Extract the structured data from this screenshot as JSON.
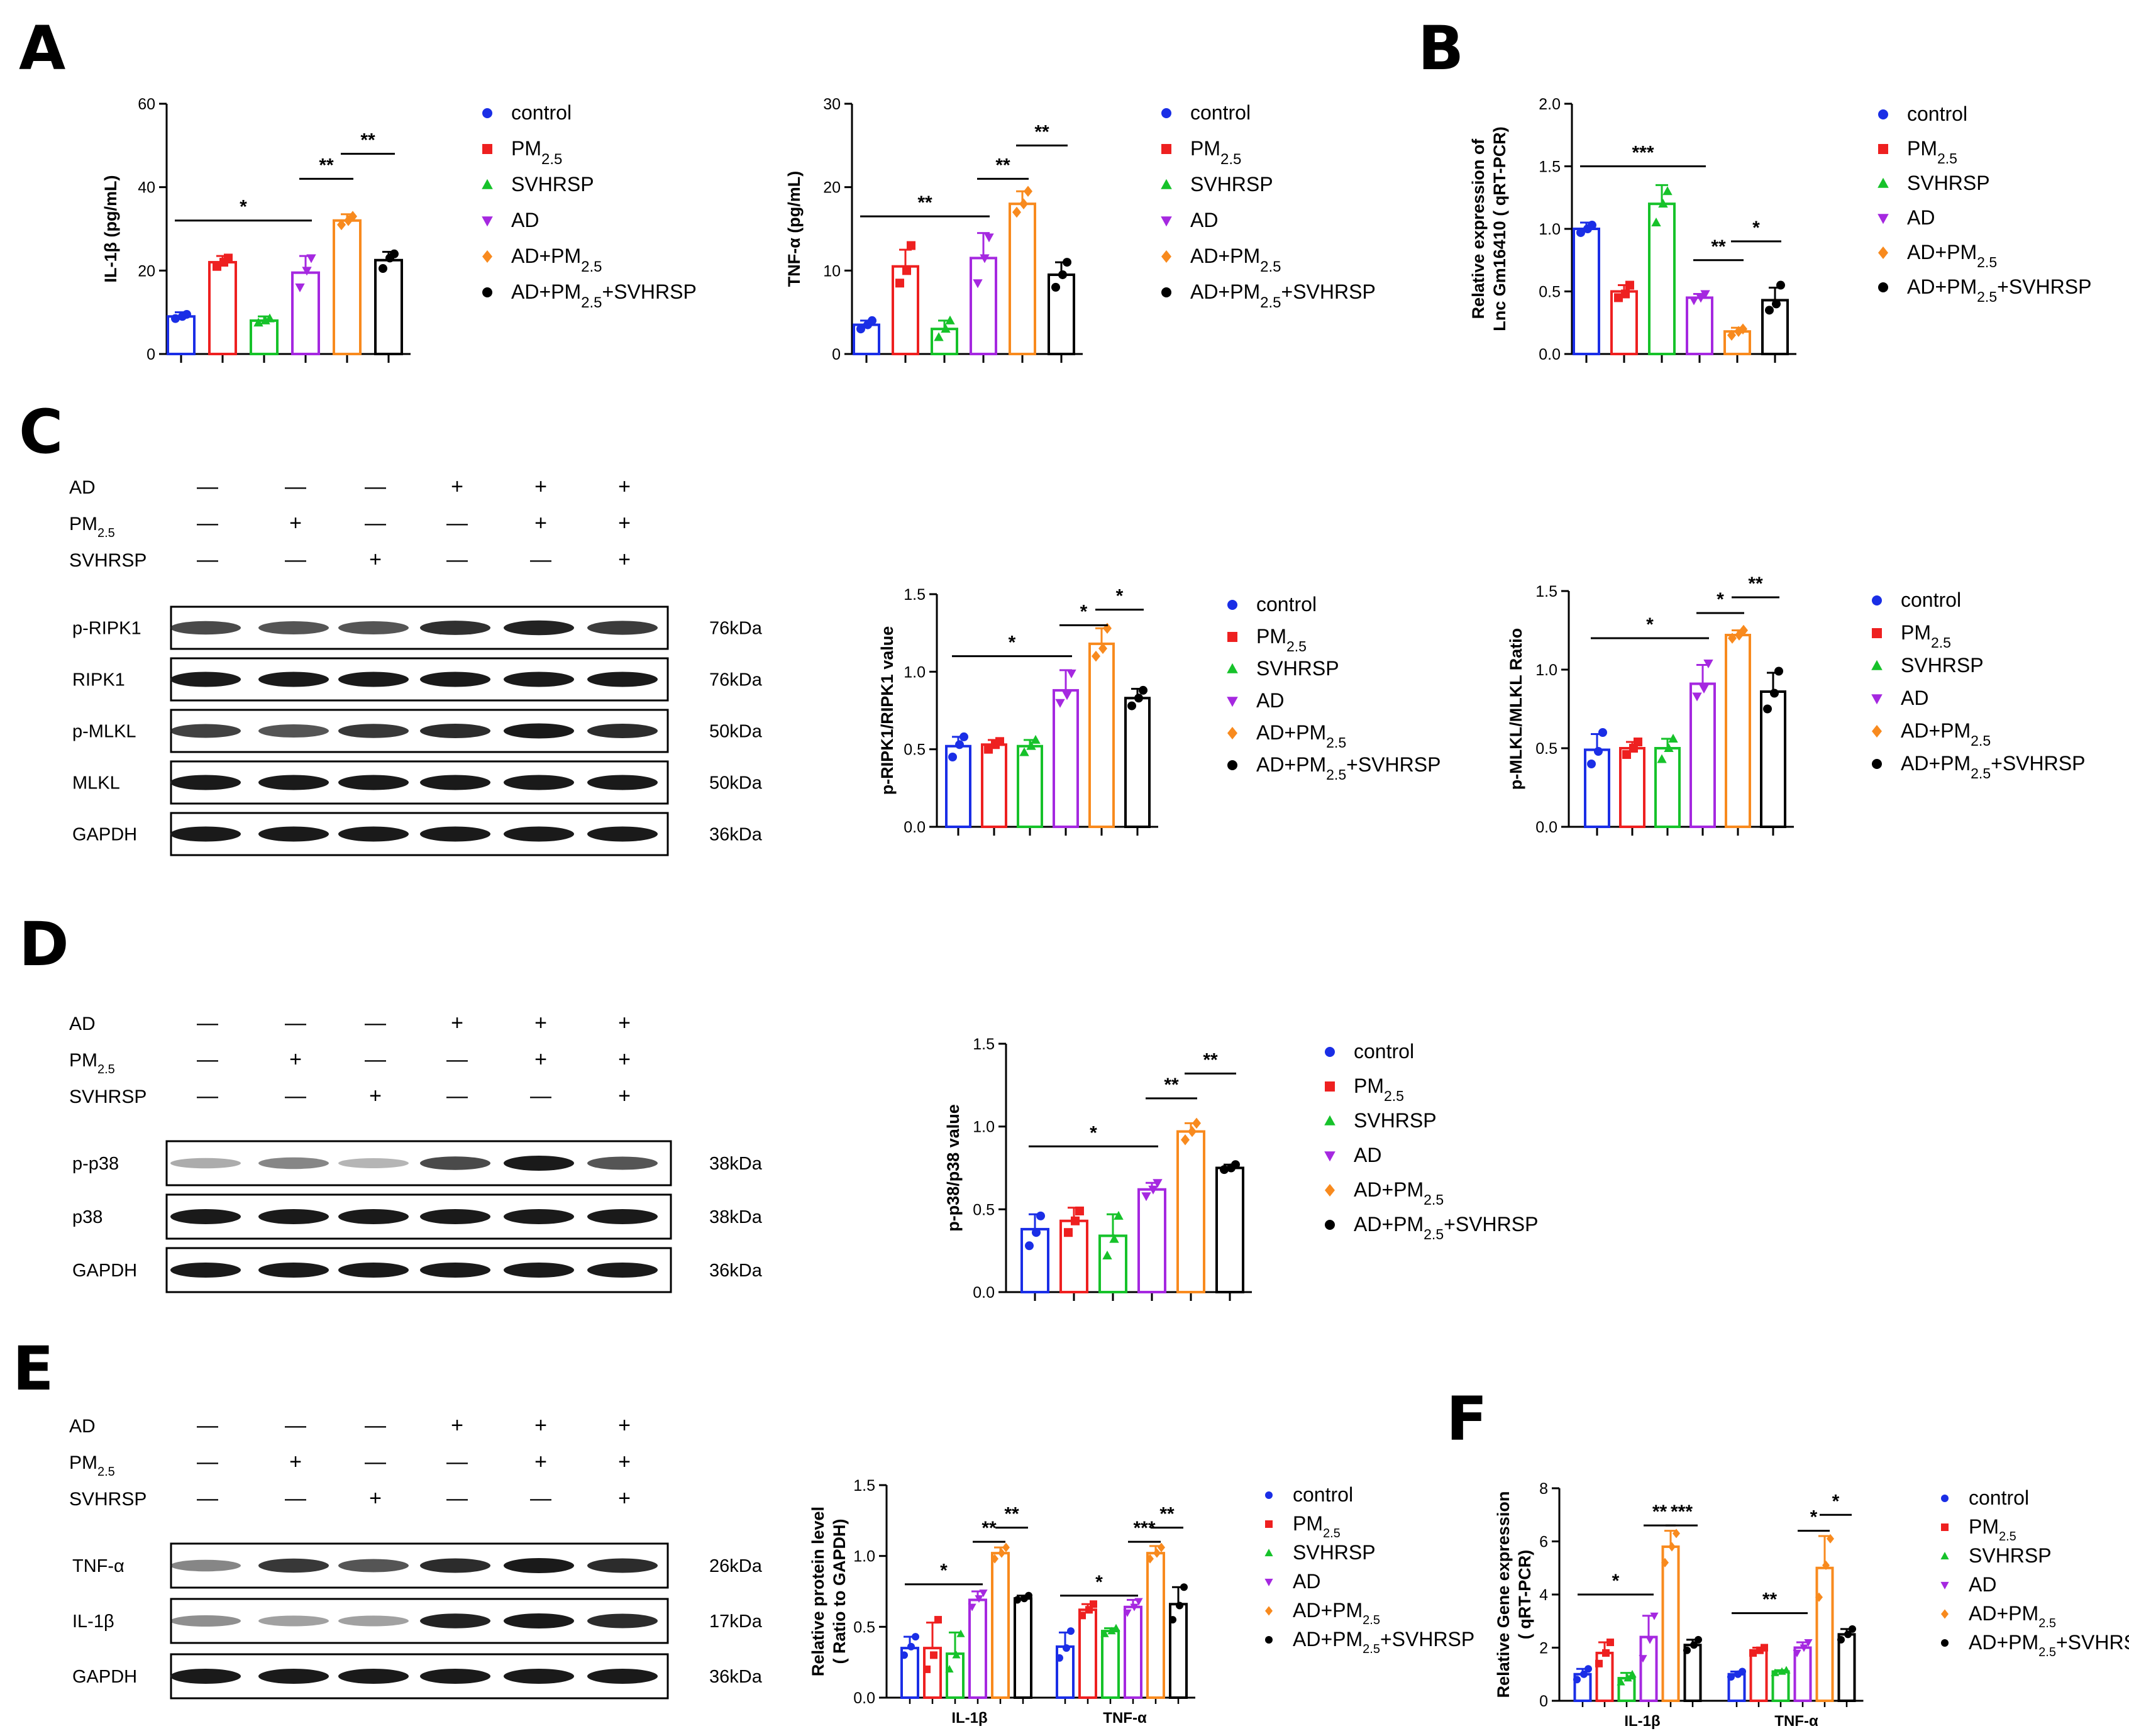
{
  "figure": {
    "panel_labels": [
      "A",
      "B",
      "C",
      "D",
      "E",
      "F"
    ],
    "colors": {
      "control": "#1a2ee6",
      "pm25": "#ee2020",
      "svhrsp": "#16c22a",
      "ad": "#a528e0",
      "ad_pm25": "#f88a1e",
      "ad_pm25_svhrsp": "#000000"
    },
    "legend_items": [
      {
        "base": "control",
        "sub": "",
        "tail": "",
        "marker": "circle",
        "color_key": "control"
      },
      {
        "base": "PM",
        "sub": "2.5",
        "tail": "",
        "marker": "square",
        "color_key": "pm25"
      },
      {
        "base": "SVHRSP",
        "sub": "",
        "tail": "",
        "marker": "triangle",
        "color_key": "svhrsp"
      },
      {
        "base": "AD",
        "sub": "",
        "tail": "",
        "marker": "triangle-down",
        "color_key": "ad"
      },
      {
        "base": "AD+PM",
        "sub": "2.5",
        "tail": "",
        "marker": "diamond",
        "color_key": "ad_pm25"
      },
      {
        "base": "AD+PM",
        "sub": "2.5",
        "tail": "+SVHRSP",
        "marker": "circle",
        "color_key": "ad_pm25_svhrsp"
      }
    ],
    "condition_rows": [
      {
        "label": "AD",
        "sub": "",
        "signs": [
          "—",
          "—",
          "—",
          "+",
          "+",
          "+"
        ]
      },
      {
        "label": "PM",
        "sub": "2.5",
        "signs": [
          "—",
          "+",
          "—",
          "—",
          "+",
          "+"
        ]
      },
      {
        "label": "SVHRSP",
        "sub": "",
        "signs": [
          "—",
          "—",
          "+",
          "—",
          "—",
          "+"
        ]
      }
    ],
    "blots": {
      "C": [
        {
          "label": "p-RIPK1",
          "kda": "76kDa"
        },
        {
          "label": "RIPK1",
          "kda": "76kDa"
        },
        {
          "label": "p-MLKL",
          "kda": "50kDa"
        },
        {
          "label": "MLKL",
          "kda": "50kDa"
        },
        {
          "label": "GAPDH",
          "kda": "36kDa"
        }
      ],
      "D": [
        {
          "label": "p-p38",
          "kda": "38kDa"
        },
        {
          "label": "p38",
          "kda": "38kDa"
        },
        {
          "label": "GAPDH",
          "kda": "36kDa"
        }
      ],
      "E": [
        {
          "label": "TNF-α",
          "kda": "26kDa"
        },
        {
          "label": "IL-1β",
          "kda": "17kDa"
        },
        {
          "label": "GAPDH",
          "kda": "36kDa"
        }
      ]
    }
  },
  "chart_data": [
    {
      "id": "A1",
      "panel": "A",
      "type": "bar",
      "ylabel": "IL-1β (pg/mL)",
      "ylim": [
        0,
        60
      ],
      "yticks": [
        "0",
        "20",
        "40",
        "60"
      ],
      "groups": [
        "control",
        "PM2.5",
        "SVHRSP",
        "AD",
        "AD+PM2.5",
        "AD+PM2.5+SVHRSP"
      ],
      "values": [
        9,
        22,
        8,
        19.5,
        32,
        22.5
      ],
      "errors": [
        1,
        1.5,
        1,
        4,
        1.5,
        2
      ],
      "points": [
        [
          8.5,
          9,
          9.5
        ],
        [
          21,
          22,
          23
        ],
        [
          7.5,
          8,
          8.5
        ],
        [
          16,
          20,
          23
        ],
        [
          31,
          32,
          33
        ],
        [
          20.5,
          23,
          24
        ]
      ],
      "significance": [
        {
          "from": 0,
          "to": 3,
          "label": "*",
          "y": 32
        },
        {
          "from": 3,
          "to": 4,
          "label": "**",
          "y": 42
        },
        {
          "from": 4,
          "to": 5,
          "label": "**",
          "y": 48
        }
      ]
    },
    {
      "id": "A2",
      "panel": "A",
      "type": "bar",
      "ylabel": "TNF-α (pg/mL)",
      "ylim": [
        0,
        30
      ],
      "yticks": [
        "0",
        "10",
        "20",
        "30"
      ],
      "groups": [
        "control",
        "PM2.5",
        "SVHRSP",
        "AD",
        "AD+PM2.5",
        "AD+PM2.5+SVHRSP"
      ],
      "values": [
        3.5,
        10.5,
        3,
        11.5,
        18,
        9.5
      ],
      "errors": [
        0.5,
        2,
        1,
        3,
        1.5,
        1.5
      ],
      "points": [
        [
          3,
          3.5,
          4
        ],
        [
          8.5,
          10,
          13
        ],
        [
          2,
          3,
          4
        ],
        [
          8.5,
          11.5,
          14
        ],
        [
          17,
          18,
          19.5
        ],
        [
          8,
          9.5,
          11
        ]
      ],
      "significance": [
        {
          "from": 0,
          "to": 3,
          "label": "**",
          "y": 16.5
        },
        {
          "from": 3,
          "to": 4,
          "label": "**",
          "y": 21
        },
        {
          "from": 4,
          "to": 5,
          "label": "**",
          "y": 25
        }
      ]
    },
    {
      "id": "B",
      "panel": "B",
      "type": "bar",
      "ylabel": [
        "Relative expression of",
        "Lnc Gm16410 ( qRT-PCR)"
      ],
      "ylim": [
        0,
        2.0
      ],
      "yticks": [
        "0.0",
        "0.5",
        "1.0",
        "1.5",
        "2.0"
      ],
      "groups": [
        "control",
        "PM2.5",
        "SVHRSP",
        "AD",
        "AD+PM2.5",
        "AD+PM2.5+SVHRSP"
      ],
      "values": [
        1.0,
        0.5,
        1.2,
        0.45,
        0.18,
        0.43
      ],
      "errors": [
        0.05,
        0.05,
        0.15,
        0.03,
        0.03,
        0.1
      ],
      "points": [
        [
          0.97,
          1.0,
          1.03
        ],
        [
          0.45,
          0.48,
          0.55
        ],
        [
          1.05,
          1.2,
          1.3
        ],
        [
          0.43,
          0.45,
          0.48
        ],
        [
          0.15,
          0.18,
          0.2
        ],
        [
          0.35,
          0.4,
          0.55
        ]
      ],
      "significance": [
        {
          "from": 0,
          "to": 3,
          "label": "***",
          "y": 1.5
        },
        {
          "from": 3,
          "to": 4,
          "label": "**",
          "y": 0.75
        },
        {
          "from": 4,
          "to": 5,
          "label": "*",
          "y": 0.9
        }
      ]
    },
    {
      "id": "C1",
      "panel": "C",
      "type": "bar",
      "ylabel": "p-RIPK1/RIPK1 value",
      "ylim": [
        0,
        1.5
      ],
      "yticks": [
        "0.0",
        "0.5",
        "1.0",
        "1.5"
      ],
      "groups": [
        "control",
        "PM2.5",
        "SVHRSP",
        "AD",
        "AD+PM2.5",
        "AD+PM2.5+SVHRSP"
      ],
      "values": [
        0.52,
        0.53,
        0.52,
        0.88,
        1.18,
        0.83
      ],
      "errors": [
        0.06,
        0.03,
        0.04,
        0.13,
        0.1,
        0.06
      ],
      "points": [
        [
          0.45,
          0.53,
          0.58
        ],
        [
          0.5,
          0.53,
          0.55
        ],
        [
          0.48,
          0.52,
          0.56
        ],
        [
          0.8,
          0.85,
          0.99
        ],
        [
          1.1,
          1.15,
          1.28
        ],
        [
          0.78,
          0.83,
          0.88
        ]
      ],
      "significance": [
        {
          "from": 0,
          "to": 3,
          "label": "*",
          "y": 1.1
        },
        {
          "from": 3,
          "to": 4,
          "label": "*",
          "y": 1.3
        },
        {
          "from": 4,
          "to": 5,
          "label": "*",
          "y": 1.4
        }
      ]
    },
    {
      "id": "C2",
      "panel": "C",
      "type": "bar",
      "ylabel": "p-MLKL/MLKL Ratio",
      "ylim": [
        0,
        1.5
      ],
      "yticks": [
        "0.0",
        "0.5",
        "1.0",
        "1.5"
      ],
      "groups": [
        "control",
        "PM2.5",
        "SVHRSP",
        "AD",
        "AD+PM2.5",
        "AD+PM2.5+SVHRSP"
      ],
      "values": [
        0.49,
        0.5,
        0.5,
        0.91,
        1.22,
        0.86
      ],
      "errors": [
        0.1,
        0.04,
        0.06,
        0.12,
        0.03,
        0.12
      ],
      "points": [
        [
          0.4,
          0.48,
          0.6
        ],
        [
          0.46,
          0.5,
          0.54
        ],
        [
          0.43,
          0.5,
          0.56
        ],
        [
          0.83,
          0.88,
          1.04
        ],
        [
          1.2,
          1.22,
          1.25
        ],
        [
          0.75,
          0.85,
          0.99
        ]
      ],
      "significance": [
        {
          "from": 0,
          "to": 3,
          "label": "*",
          "y": 1.2
        },
        {
          "from": 3,
          "to": 4,
          "label": "*",
          "y": 1.36
        },
        {
          "from": 4,
          "to": 5,
          "label": "**",
          "y": 1.46
        }
      ]
    },
    {
      "id": "D",
      "panel": "D",
      "type": "bar",
      "ylabel": "p-p38/p38 value",
      "ylim": [
        0,
        1.5
      ],
      "yticks": [
        "0.0",
        "0.5",
        "1.0",
        "1.5"
      ],
      "groups": [
        "control",
        "PM2.5",
        "SVHRSP",
        "AD",
        "AD+PM2.5",
        "AD+PM2.5+SVHRSP"
      ],
      "values": [
        0.38,
        0.43,
        0.34,
        0.62,
        0.97,
        0.75
      ],
      "errors": [
        0.09,
        0.08,
        0.13,
        0.04,
        0.05,
        0.02
      ],
      "points": [
        [
          0.28,
          0.36,
          0.46
        ],
        [
          0.36,
          0.43,
          0.49
        ],
        [
          0.22,
          0.32,
          0.46
        ],
        [
          0.58,
          0.62,
          0.66
        ],
        [
          0.92,
          0.97,
          1.02
        ],
        [
          0.74,
          0.75,
          0.77
        ]
      ],
      "significance": [
        {
          "from": 0,
          "to": 3,
          "label": "*",
          "y": 0.88
        },
        {
          "from": 3,
          "to": 4,
          "label": "**",
          "y": 1.17
        },
        {
          "from": 4,
          "to": 5,
          "label": "**",
          "y": 1.32
        }
      ]
    },
    {
      "id": "E",
      "panel": "E",
      "type": "bar",
      "ylabel": [
        "Relative protein level",
        "( Ratio to GAPDH)"
      ],
      "ylim": [
        0,
        1.5
      ],
      "yticks": [
        "0.0",
        "0.5",
        "1.0",
        "1.5"
      ],
      "categories": [
        "IL-1β",
        "TNF-α"
      ],
      "series": [
        {
          "name": "control",
          "values": [
            0.35,
            0.36
          ],
          "errors": [
            0.08,
            0.1
          ],
          "points": [
            [
              0.3,
              0.36,
              0.43
            ],
            [
              0.28,
              0.35,
              0.47
            ]
          ]
        },
        {
          "name": "PM2.5",
          "values": [
            0.35,
            0.62
          ],
          "errors": [
            0.18,
            0.04
          ],
          "points": [
            [
              0.2,
              0.3,
              0.55
            ],
            [
              0.58,
              0.62,
              0.66
            ]
          ]
        },
        {
          "name": "SVHRSP",
          "values": [
            0.31,
            0.47
          ],
          "errors": [
            0.15,
            0.02
          ],
          "points": [
            [
              0.2,
              0.3,
              0.45
            ],
            [
              0.45,
              0.47,
              0.49
            ]
          ]
        },
        {
          "name": "AD",
          "values": [
            0.69,
            0.64
          ],
          "errors": [
            0.06,
            0.05
          ],
          "points": [
            [
              0.64,
              0.7,
              0.74
            ],
            [
              0.6,
              0.64,
              0.68
            ]
          ]
        },
        {
          "name": "AD+PM2.5",
          "values": [
            1.02,
            1.02
          ],
          "errors": [
            0.04,
            0.05
          ],
          "points": [
            [
              0.98,
              1.02,
              1.06
            ],
            [
              0.98,
              1.02,
              1.06
            ]
          ]
        },
        {
          "name": "AD+PM2.5+SVHRSP",
          "values": [
            0.7,
            0.66
          ],
          "errors": [
            0.02,
            0.12
          ],
          "points": [
            [
              0.69,
              0.7,
              0.72
            ],
            [
              0.55,
              0.65,
              0.78
            ]
          ]
        }
      ],
      "significance": [
        {
          "category": 0,
          "from": 0,
          "to": 3,
          "label": "*",
          "y": 0.8
        },
        {
          "category": 0,
          "from": 3,
          "to": 4,
          "label": "**",
          "y": 1.1
        },
        {
          "category": 0,
          "from": 4,
          "to": 5,
          "label": "**",
          "y": 1.2
        },
        {
          "category": 1,
          "from": 0,
          "to": 3,
          "label": "*",
          "y": 0.72
        },
        {
          "category": 1,
          "from": 3,
          "to": 4,
          "label": "***",
          "y": 1.1
        },
        {
          "category": 1,
          "from": 4,
          "to": 5,
          "label": "**",
          "y": 1.2
        }
      ]
    },
    {
      "id": "F",
      "panel": "F",
      "type": "bar",
      "ylabel": [
        "Relative Gene expression",
        "( qRT-PCR)"
      ],
      "ylim": [
        0,
        8
      ],
      "yticks": [
        "0",
        "2",
        "4",
        "6",
        "8"
      ],
      "categories": [
        "IL-1β",
        "TNF-α"
      ],
      "series": [
        {
          "name": "control",
          "values": [
            1.0,
            1.0
          ],
          "errors": [
            0.2,
            0.1
          ],
          "points": [
            [
              0.8,
              1.0,
              1.2
            ],
            [
              0.9,
              1.0,
              1.1
            ]
          ]
        },
        {
          "name": "PM2.5",
          "values": [
            1.8,
            1.9
          ],
          "errors": [
            0.4,
            0.1
          ],
          "points": [
            [
              1.4,
              1.8,
              2.2
            ],
            [
              1.8,
              1.9,
              2.0
            ]
          ]
        },
        {
          "name": "SVHRSP",
          "values": [
            0.85,
            1.1
          ],
          "errors": [
            0.2,
            0.05
          ],
          "points": [
            [
              0.7,
              0.85,
              1.0
            ],
            [
              1.05,
              1.1,
              1.15
            ]
          ]
        },
        {
          "name": "AD",
          "values": [
            2.4,
            2.0
          ],
          "errors": [
            0.8,
            0.2
          ],
          "points": [
            [
              1.6,
              2.3,
              3.2
            ],
            [
              1.8,
              2.0,
              2.2
            ]
          ]
        },
        {
          "name": "AD+PM2.5",
          "values": [
            5.8,
            5.0
          ],
          "errors": [
            0.6,
            1.2
          ],
          "points": [
            [
              5.2,
              5.8,
              6.3
            ],
            [
              3.9,
              5.1,
              6.1
            ]
          ]
        },
        {
          "name": "AD+PM2.5+SVHRSP",
          "values": [
            2.1,
            2.5
          ],
          "errors": [
            0.2,
            0.2
          ],
          "points": [
            [
              1.9,
              2.1,
              2.3
            ],
            [
              2.3,
              2.5,
              2.7
            ]
          ]
        }
      ],
      "significance": [
        {
          "category": 0,
          "from": 0,
          "to": 3,
          "label": "*",
          "y": 4.0
        },
        {
          "category": 0,
          "from": 3,
          "to": 4,
          "label": "**",
          "y": 6.6
        },
        {
          "category": 0,
          "from": 4,
          "to": 5,
          "label": "***",
          "y": 6.6
        },
        {
          "category": 1,
          "from": 0,
          "to": 3,
          "label": "**",
          "y": 3.3
        },
        {
          "category": 1,
          "from": 3,
          "to": 4,
          "label": "*",
          "y": 6.4
        },
        {
          "category": 1,
          "from": 4,
          "to": 5,
          "label": "*",
          "y": 7.0
        }
      ]
    }
  ]
}
